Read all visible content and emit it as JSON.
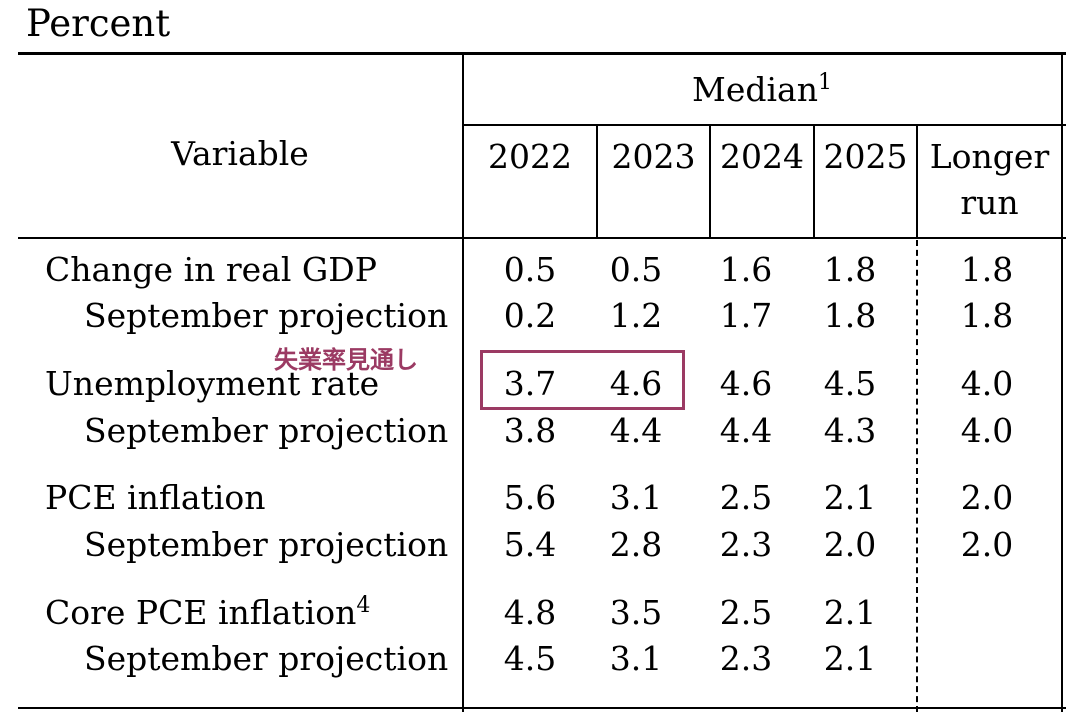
{
  "caption": "Percent",
  "header": {
    "variable": "Variable",
    "median": "Median",
    "median_sup": "1",
    "years": [
      "2022",
      "2023",
      "2024",
      "2025"
    ],
    "longer_run_1": "Longer",
    "longer_run_2": "run"
  },
  "rows": [
    {
      "label": "Change in real GDP",
      "sup": "",
      "values": [
        "0.5",
        "0.5",
        "1.6",
        "1.8",
        "1.8"
      ]
    },
    {
      "label": "September projection",
      "sup": "",
      "values": [
        "0.2",
        "1.2",
        "1.7",
        "1.8",
        "1.8"
      ]
    },
    {
      "label": "Unemployment rate",
      "sup": "",
      "values": [
        "3.7",
        "4.6",
        "4.6",
        "4.5",
        "4.0"
      ]
    },
    {
      "label": "September projection",
      "sup": "",
      "values": [
        "3.8",
        "4.4",
        "4.4",
        "4.3",
        "4.0"
      ]
    },
    {
      "label": "PCE inflation",
      "sup": "",
      "values": [
        "5.6",
        "3.1",
        "2.5",
        "2.1",
        "2.0"
      ]
    },
    {
      "label": "September projection",
      "sup": "",
      "values": [
        "5.4",
        "2.8",
        "2.3",
        "2.0",
        "2.0"
      ]
    },
    {
      "label": "Core PCE inflation",
      "sup": "4",
      "values": [
        "4.8",
        "3.5",
        "2.5",
        "2.1",
        ""
      ]
    },
    {
      "label": "September projection",
      "sup": "",
      "values": [
        "4.5",
        "3.1",
        "2.3",
        "2.1",
        ""
      ]
    }
  ],
  "annotation": {
    "text": "失業率見通し",
    "color": "#9b3a63"
  }
}
